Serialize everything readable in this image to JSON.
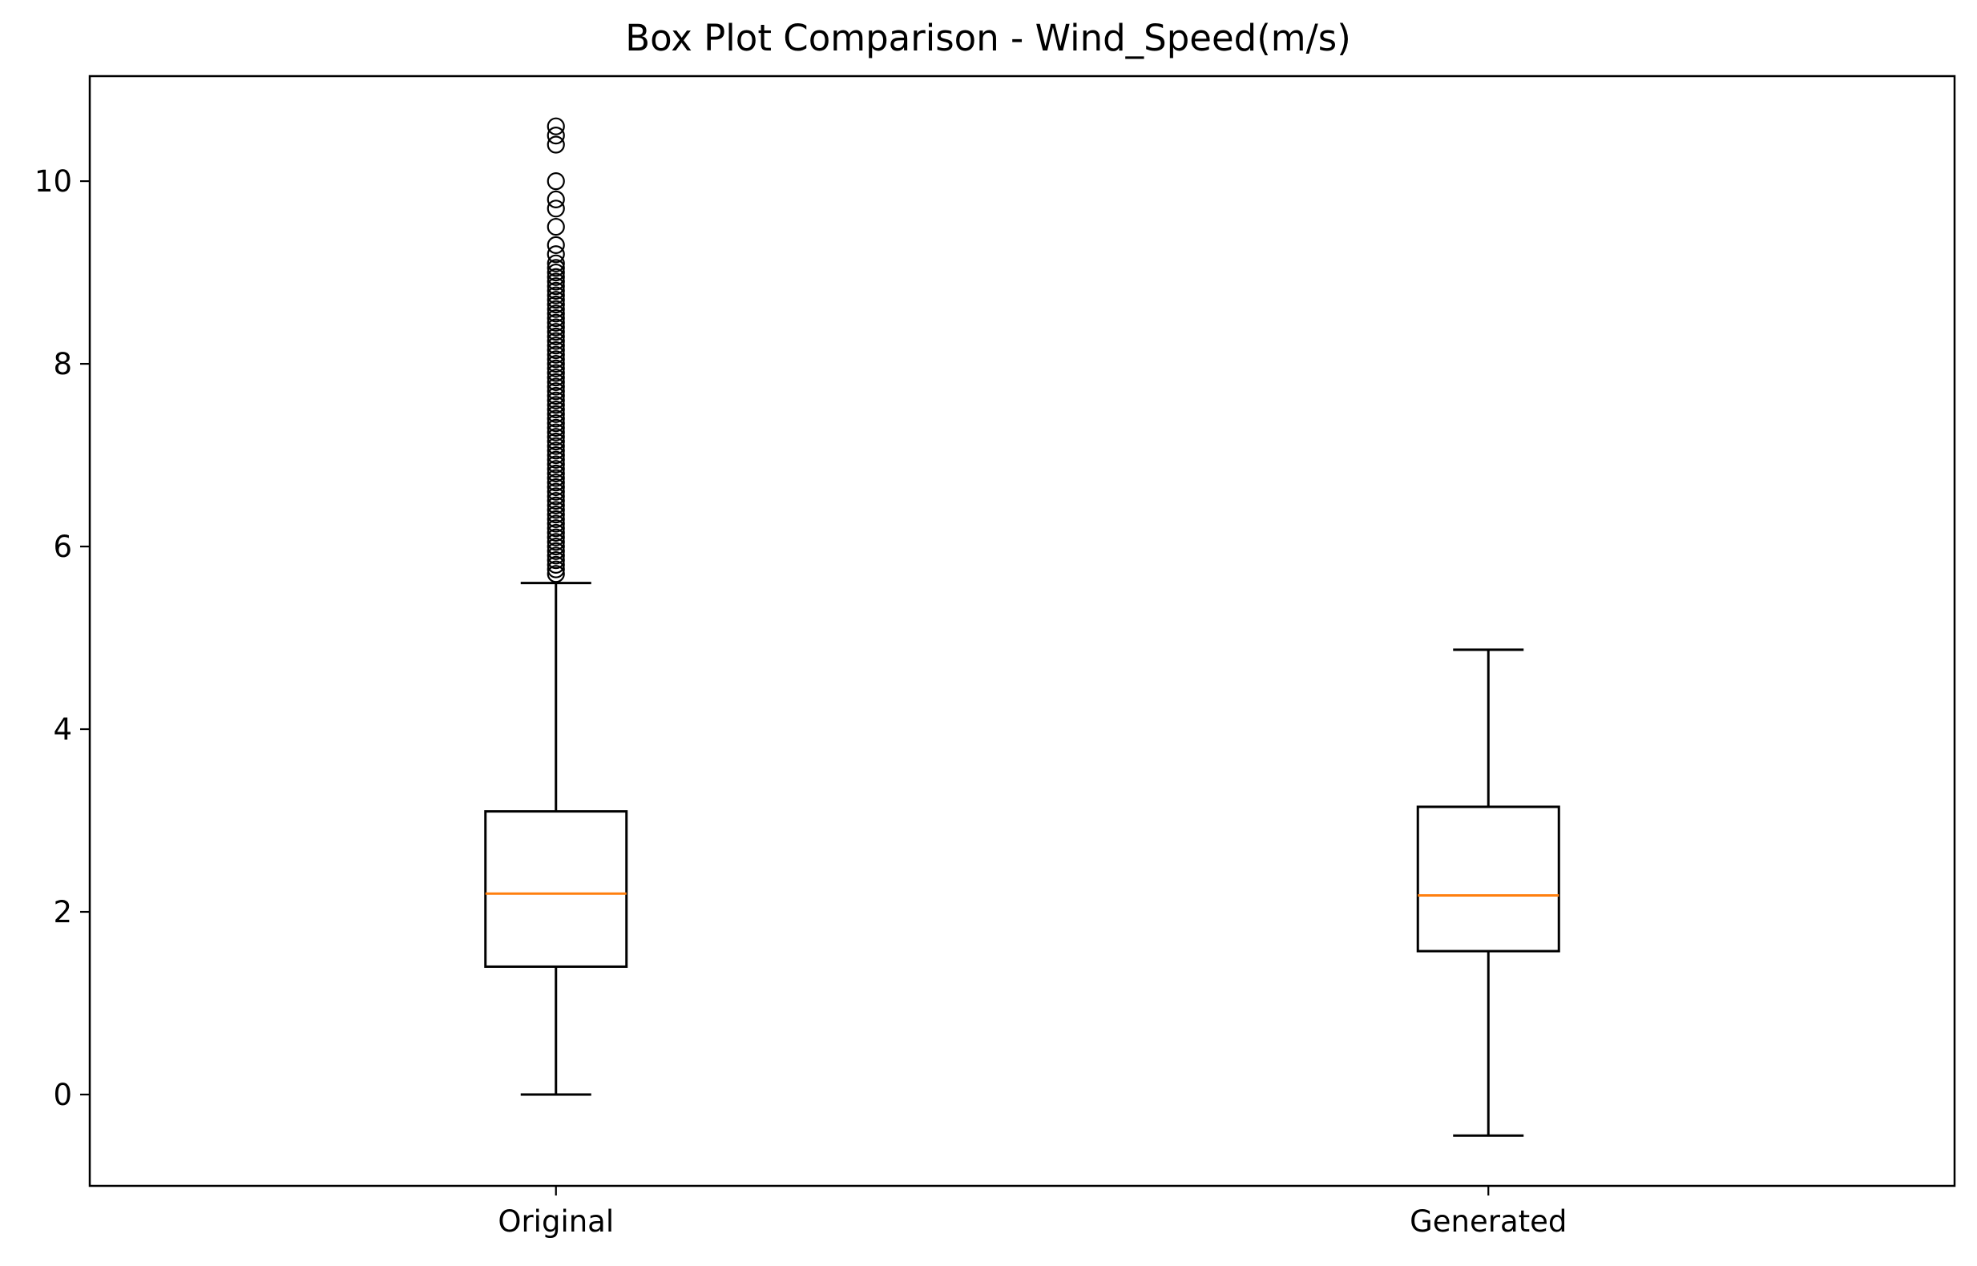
{
  "chart_data": {
    "type": "box",
    "title": "Box Plot Comparison - Wind_Speed(m/s)",
    "xlabel": "",
    "ylabel": "",
    "categories": [
      "Original",
      "Generated"
    ],
    "ylim": [
      -1.0,
      11.15
    ],
    "yticks": [
      0,
      2,
      4,
      6,
      8,
      10
    ],
    "grid": false,
    "series": [
      {
        "category": "Original",
        "whisker_low": 0.0,
        "q1": 1.4,
        "median": 2.2,
        "q3": 3.1,
        "whisker_high": 5.6,
        "outliers": [
          5.7,
          5.75,
          5.8,
          5.85,
          5.9,
          5.95,
          6.0,
          6.05,
          6.1,
          6.15,
          6.2,
          6.25,
          6.3,
          6.35,
          6.4,
          6.45,
          6.5,
          6.55,
          6.6,
          6.65,
          6.7,
          6.75,
          6.8,
          6.85,
          6.9,
          6.95,
          7.0,
          7.05,
          7.1,
          7.15,
          7.2,
          7.25,
          7.3,
          7.35,
          7.4,
          7.45,
          7.5,
          7.55,
          7.6,
          7.65,
          7.7,
          7.75,
          7.8,
          7.85,
          7.9,
          7.95,
          8.0,
          8.05,
          8.1,
          8.15,
          8.2,
          8.25,
          8.3,
          8.35,
          8.4,
          8.45,
          8.5,
          8.55,
          8.6,
          8.65,
          8.7,
          8.75,
          8.8,
          8.85,
          8.9,
          8.95,
          9.0,
          9.05,
          9.1,
          9.2,
          9.3,
          9.5,
          9.7,
          9.8,
          10.0,
          10.4,
          10.5,
          10.6
        ]
      },
      {
        "category": "Generated",
        "whisker_low": -0.45,
        "q1": 1.57,
        "median": 2.18,
        "q3": 3.15,
        "whisker_high": 4.87,
        "outliers": []
      }
    ],
    "colors": {
      "box": "#000000",
      "median": "#ff7f0e",
      "flier": "#000000"
    }
  }
}
